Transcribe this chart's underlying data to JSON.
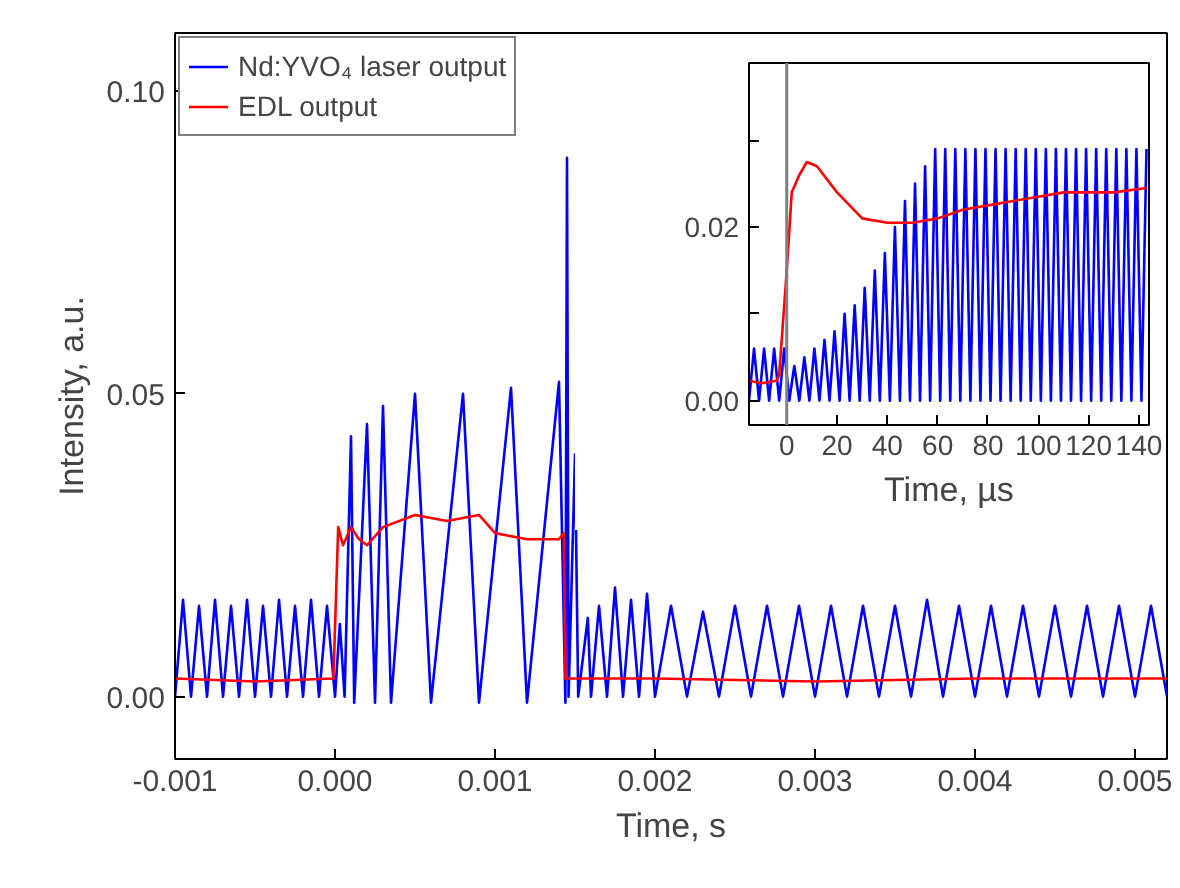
{
  "chart_data": [
    {
      "type": "line",
      "xlabel": "Time, s",
      "ylabel": "Intensity, a.u.",
      "xlim": [
        -0.001,
        0.0052
      ],
      "ylim": [
        -0.0103,
        0.1096
      ],
      "xticks": [
        {
          "value": -0.001,
          "label": "-0.001"
        },
        {
          "value": 0,
          "label": "0.000"
        },
        {
          "value": 0.001,
          "label": "0.001"
        },
        {
          "value": 0.002,
          "label": "0.002"
        },
        {
          "value": 0.003,
          "label": "0.003"
        },
        {
          "value": 0.004,
          "label": "0.004"
        },
        {
          "value": 0.005,
          "label": "0.005"
        }
      ],
      "yticks": [
        {
          "value": 0,
          "label": "0.00"
        },
        {
          "value": 0.05,
          "label": "0.05"
        },
        {
          "value": 0.1,
          "label": "0.10"
        }
      ],
      "grid": false,
      "legend": "top left",
      "line_style": "solid",
      "marker": "none",
      "series": [
        {
          "name": "Nd:YVO₄ laser output",
          "color": "#0000ff",
          "x": [
            -0.001,
            -0.00095,
            -0.0009,
            -0.00085,
            -0.0008,
            -0.00075,
            -0.0007,
            -0.00065,
            -0.0006,
            -0.00055,
            -0.0005,
            -0.00045,
            -0.0004,
            -0.00035,
            -0.0003,
            -0.00025,
            -0.0002,
            -0.00015,
            -0.0001,
            -5e-05,
            0,
            3e-05,
            6e-05,
            0.0001,
            0.00012,
            0.0002,
            0.00025,
            0.0003,
            0.00035,
            0.0005,
            0.0006,
            0.0008,
            0.0009,
            0.0011,
            0.0012,
            0.0014,
            0.00144,
            0.00145,
            0.00146,
            0.0015,
            0.00152,
            0.00158,
            0.0016,
            0.00165,
            0.0017,
            0.00175,
            0.0018,
            0.00185,
            0.0019,
            0.00195,
            0.002,
            0.0021,
            0.0022,
            0.0023,
            0.0024,
            0.0025,
            0.0026,
            0.0027,
            0.0028,
            0.0029,
            0.003,
            0.0031,
            0.0032,
            0.0033,
            0.0034,
            0.0035,
            0.0036,
            0.0037,
            0.0038,
            0.0039,
            0.004,
            0.0041,
            0.0042,
            0.0043,
            0.0044,
            0.0045,
            0.0046,
            0.0047,
            0.0048,
            0.0049,
            0.005,
            0.0051,
            0.0052
          ],
          "values": [
            0,
            0.016,
            0,
            0.015,
            0,
            0.016,
            0,
            0.015,
            0,
            0.016,
            0,
            0.015,
            0,
            0.016,
            0,
            0.015,
            0,
            0.016,
            0,
            0.015,
            0,
            0.012,
            0,
            0.043,
            -0.001,
            0.045,
            -0.001,
            0.048,
            -0.001,
            0.05,
            -0.001,
            0.05,
            -0.001,
            0.051,
            -0.001,
            0.052,
            -0.001,
            0.089,
            0,
            0.04,
            0,
            0.013,
            0,
            0.015,
            0,
            0.018,
            0,
            0.016,
            0,
            0.017,
            0,
            0.015,
            0,
            0.014,
            0,
            0.015,
            0,
            0.015,
            0,
            0.015,
            0,
            0.015,
            0,
            0.015,
            0,
            0.015,
            0,
            0.016,
            0,
            0.015,
            0,
            0.015,
            0,
            0.015,
            0,
            0.015,
            0,
            0.015,
            0,
            0.015,
            0,
            0.015,
            0
          ]
        },
        {
          "name": "EDL output",
          "color": "#ff0000",
          "x": [
            -0.001,
            -0.0005,
            -1e-05,
            2e-05,
            5e-05,
            0.0001,
            0.00015,
            0.0002,
            0.0003,
            0.0005,
            0.0007,
            0.0009,
            0.001,
            0.0012,
            0.0014,
            0.00143,
            0.00144,
            0.002,
            0.003,
            0.004,
            0.0052
          ],
          "values": [
            0.003,
            0.0025,
            0.003,
            0.028,
            0.025,
            0.028,
            0.026,
            0.025,
            0.028,
            0.03,
            0.029,
            0.03,
            0.027,
            0.026,
            0.026,
            0.027,
            0.003,
            0.003,
            0.0025,
            0.003,
            0.003
          ]
        }
      ]
    },
    {
      "type": "line",
      "xlabel": "Time, µs",
      "xlim": [
        -15,
        144
      ],
      "ylim": [
        -0.0028,
        0.0389
      ],
      "xticks": [
        0,
        20,
        40,
        60,
        80,
        100,
        120,
        140
      ],
      "yticks": [
        {
          "value": 0,
          "label": "0.00"
        },
        {
          "value": 0.01,
          "label": null
        },
        {
          "value": 0.02,
          "label": "0.02"
        },
        {
          "value": 0.03,
          "label": null
        }
      ],
      "grid": false,
      "line_style": "solid",
      "marker": "none",
      "ref_lines": [
        {
          "axis": "x",
          "value": 0,
          "color": "#808080"
        }
      ],
      "series": [
        {
          "color": "#0000ff",
          "x": [
            -15,
            -13,
            -11,
            -9,
            -7,
            -5,
            -3,
            -1,
            1,
            3,
            5,
            7,
            9,
            11,
            13,
            15,
            17,
            19,
            21,
            23,
            25,
            27,
            29,
            31,
            33,
            35,
            37,
            39,
            41,
            43,
            45,
            47,
            49,
            51,
            53,
            55,
            57,
            59,
            61,
            63,
            65,
            67,
            69,
            71,
            73,
            75,
            77,
            79,
            81,
            83,
            85,
            87,
            89,
            91,
            93,
            95,
            97,
            99,
            101,
            103,
            105,
            107,
            109,
            111,
            113,
            115,
            117,
            119,
            121,
            123,
            125,
            127,
            129,
            131,
            133,
            135,
            137,
            139,
            141,
            143
          ],
          "values": [
            0,
            0.006,
            0,
            0.006,
            0,
            0.006,
            0,
            0.006,
            0,
            0.004,
            0,
            0.005,
            0,
            0.006,
            0,
            0.007,
            0,
            0.008,
            0,
            0.01,
            0,
            0.011,
            0,
            0.013,
            0,
            0.015,
            0,
            0.017,
            0,
            0.02,
            0,
            0.023,
            0,
            0.025,
            0,
            0.027,
            0,
            0.029,
            0,
            0.029,
            0,
            0.029,
            0,
            0.029,
            0,
            0.029,
            0,
            0.029,
            0,
            0.029,
            0,
            0.029,
            0,
            0.029,
            0,
            0.029,
            0,
            0.029,
            0,
            0.029,
            0,
            0.029,
            0,
            0.029,
            0,
            0.029,
            0,
            0.029,
            0,
            0.029,
            0,
            0.029,
            0,
            0.029,
            0,
            0.029,
            0,
            0.029,
            0,
            0.029
          ]
        },
        {
          "color": "#ff0000",
          "x": [
            -15,
            -10,
            -4,
            -3,
            0,
            2,
            5,
            8,
            12,
            20,
            30,
            40,
            50,
            60,
            70,
            80,
            90,
            100,
            110,
            120,
            130,
            143
          ],
          "values": [
            0.0023,
            0.002,
            0.0023,
            0.003,
            0.015,
            0.024,
            0.026,
            0.0275,
            0.027,
            0.024,
            0.021,
            0.0205,
            0.0205,
            0.021,
            0.022,
            0.0225,
            0.023,
            0.0235,
            0.024,
            0.024,
            0.024,
            0.0245
          ]
        }
      ]
    }
  ]
}
